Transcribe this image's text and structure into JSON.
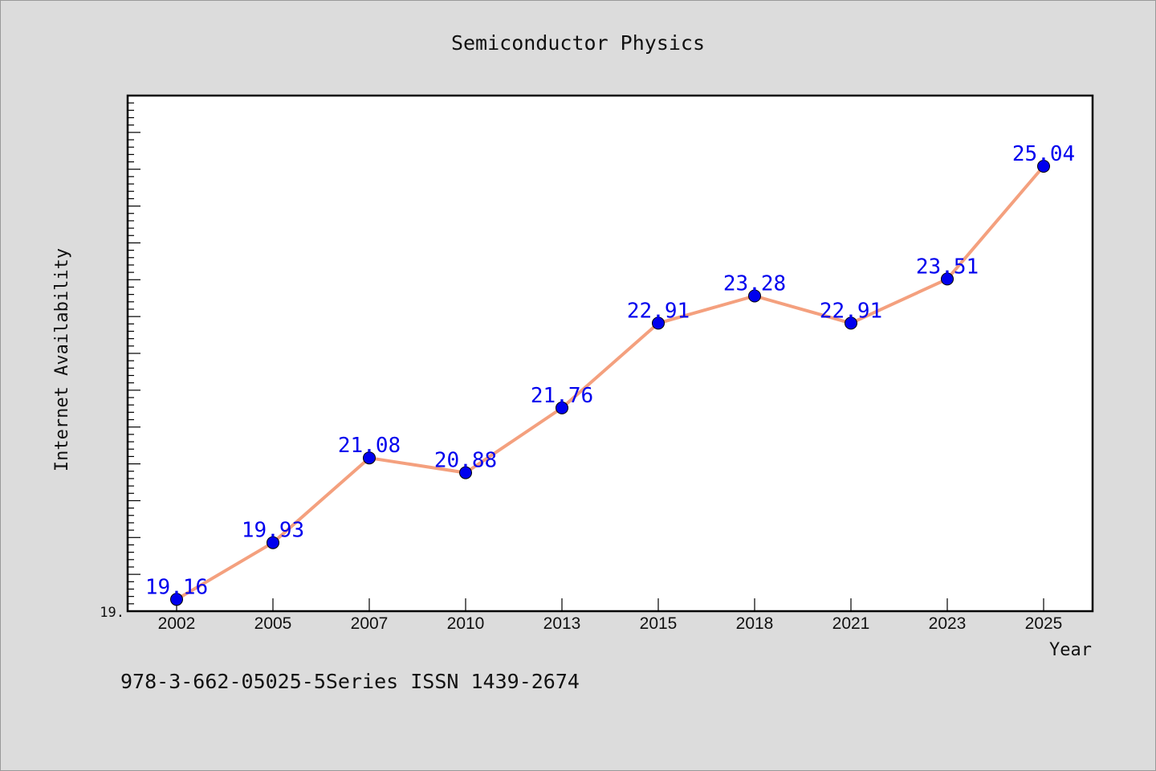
{
  "chart_data": {
    "type": "line",
    "title": "Semiconductor Physics",
    "xlabel": "Year",
    "ylabel": "Internet Availability",
    "categories": [
      "2002",
      "2005",
      "2007",
      "2010",
      "2013",
      "2015",
      "2018",
      "2021",
      "2023",
      "2025"
    ],
    "values": [
      19.16,
      19.93,
      21.08,
      20.88,
      21.76,
      22.91,
      23.28,
      22.91,
      23.51,
      25.04
    ],
    "data_labels": [
      "19.16",
      "19.93",
      "21.08",
      "20.88",
      "21.76",
      "22.91",
      "23.28",
      "22.91",
      "23.51",
      "25.04"
    ],
    "ylim": [
      19.0,
      26.0
    ],
    "y_tick_labels": [
      "19."
    ],
    "grid": false,
    "line_color": "#f4a07e",
    "marker_color": "#0000ee",
    "label_color": "#0000ee"
  },
  "footer": {
    "text": "978-3-662-05025-5Series ISSN 1439-2674"
  }
}
